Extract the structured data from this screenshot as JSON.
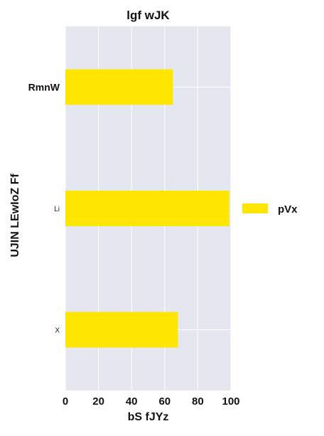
{
  "chart_data": {
    "type": "bar",
    "orientation": "horizontal",
    "title": "lgf wJK",
    "xlabel": "bS fJYz",
    "ylabel": "UJIN LEwIoZ Ff",
    "categories": [
      "RmnW",
      "Li",
      "X"
    ],
    "series": [
      {
        "name": "pVx",
        "values": [
          65,
          99,
          68
        ],
        "color": "#ffe600"
      }
    ],
    "xlim": [
      0,
      100
    ],
    "xticks": [
      "0",
      "20",
      "40",
      "60",
      "80",
      "100"
    ],
    "grid": true,
    "legend_position": "right",
    "plot_background": "#e5e7f0",
    "grid_color": "#ffffff"
  }
}
